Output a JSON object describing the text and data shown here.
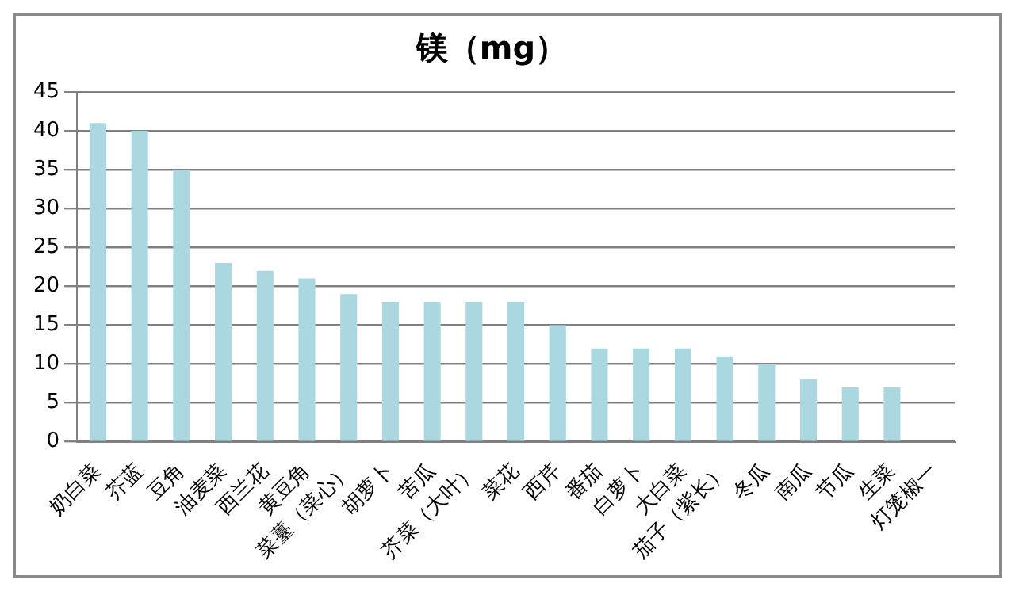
{
  "chart_data": {
    "type": "bar",
    "title": "镁（mg）",
    "categories": [
      "奶白菜",
      "芥蓝",
      "豆角",
      "油麦菜",
      "西兰花",
      "黄豆角",
      "菜薹（菜心）",
      "胡萝卜",
      "苦瓜",
      "芥菜（大叶）",
      "菜花",
      "西芹",
      "番茄",
      "白萝卜",
      "大白菜",
      "茄子（紫长）",
      "冬瓜",
      "南瓜",
      "节瓜",
      "生菜",
      "灯笼椒一"
    ],
    "values": [
      41,
      40,
      35,
      23,
      22,
      21,
      19,
      18,
      18,
      18,
      18,
      15,
      12,
      12,
      12,
      11,
      10,
      8,
      7,
      7,
      null
    ],
    "color": "#abd7e0",
    "ylim": [
      0,
      45
    ],
    "yticks": [
      0,
      5,
      10,
      15,
      20,
      25,
      30,
      35,
      40,
      45
    ],
    "grid": "y",
    "legend": false
  }
}
